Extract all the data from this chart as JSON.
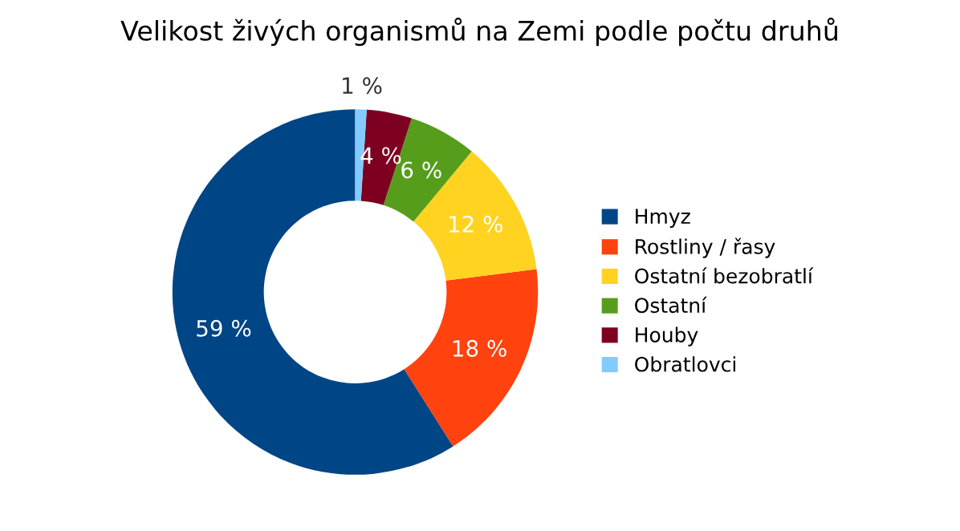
{
  "chart_data": {
    "type": "donut",
    "title": "Velikost živých organismů na Zemi podle počtu druhů",
    "categories": [
      "Hmyz",
      "Rostliny / řasy",
      "Ostatní bezobratlí",
      "Ostatní",
      "Houby",
      "Obratlovci"
    ],
    "values": [
      59,
      18,
      12,
      6,
      4,
      1
    ],
    "colors": [
      "#004586",
      "#ff420e",
      "#ffd320",
      "#579d1c",
      "#7e0021",
      "#83caff"
    ],
    "value_labels": [
      "59 %",
      "18 %",
      "12 %",
      "6 %",
      "4 %",
      "1 %"
    ],
    "legend": "right"
  }
}
